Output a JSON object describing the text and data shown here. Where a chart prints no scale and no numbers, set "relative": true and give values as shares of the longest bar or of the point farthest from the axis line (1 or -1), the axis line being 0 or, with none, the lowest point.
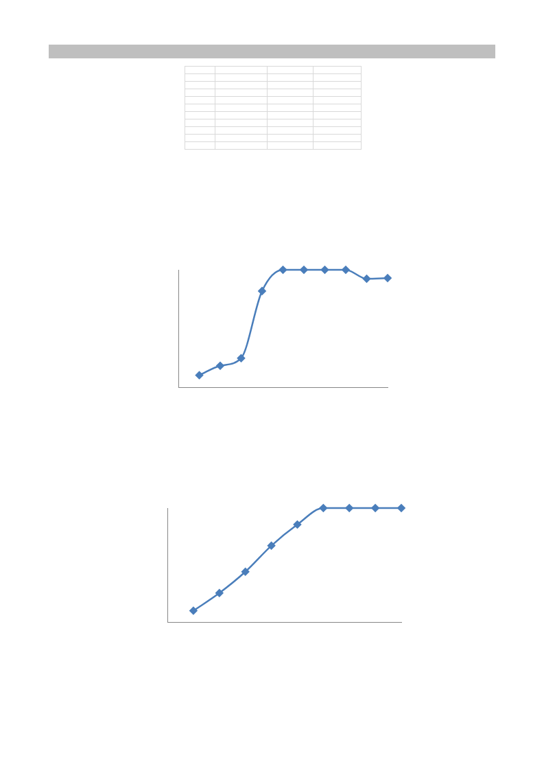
{
  "chart_data": [
    {
      "type": "line",
      "relative": true,
      "categories": [
        null,
        null,
        null,
        null,
        null,
        null,
        null,
        null,
        null,
        null
      ],
      "series": [
        {
          "color": "#4a7ebb",
          "values": [
            0.105,
            0.186,
            0.25,
            0.82,
            1,
            1,
            1,
            1,
            0.924,
            0.93
          ]
        }
      ],
      "marker": "diamond",
      "grid": false,
      "legend": false
    },
    {
      "type": "line",
      "relative": true,
      "categories": [
        null,
        null,
        null,
        null,
        null,
        null,
        null,
        null,
        null
      ],
      "series": [
        {
          "color": "#4a7ebb",
          "values": [
            0.102,
            0.257,
            0.443,
            0.671,
            0.856,
            1,
            1,
            1,
            1
          ]
        }
      ],
      "marker": "diamond",
      "grid": false,
      "legend": false
    }
  ]
}
